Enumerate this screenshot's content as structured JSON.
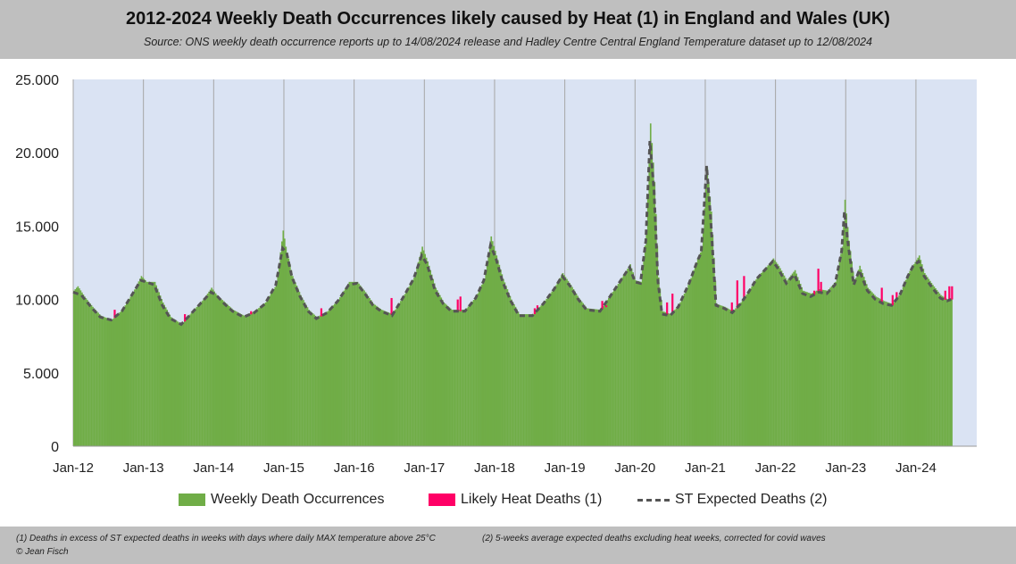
{
  "header": {
    "title": "2012-2024 Weekly Death Occurrences likely caused by Heat (1) in England and Wales (UK)",
    "subtitle": "Source: ONS weekly death occurrence reports up to 14/08/2024 release and Hadley Centre Central England Temperature dataset up to 12/08/2024"
  },
  "legend": {
    "weekly": "Weekly Death Occurrences",
    "heat": "Likely Heat Deaths (1)",
    "expected": "ST Expected Deaths (2)"
  },
  "footer": {
    "note1": "(1) Deaths in excess of ST expected deaths in weeks with days where daily MAX temperature above 25°C",
    "note2": "(2) 5-weeks average expected deaths excluding heat weeks, corrected for covid waves",
    "credit": "© Jean Fisch"
  },
  "colors": {
    "plot_bg": "#dae3f3",
    "weekly": "#70ad47",
    "heat": "#ff0066",
    "expected": "#555555",
    "year_line": "#a6a6a6"
  },
  "chart_data": {
    "type": "bar",
    "title": "2012-2024 Weekly Death Occurrences likely caused by Heat (1) in England and Wales (UK)",
    "xlabel": "",
    "ylabel": "",
    "ylim": [
      0,
      25000
    ],
    "xlim_weeks": [
      0,
      669
    ],
    "yticks": [
      0,
      5000,
      10000,
      15000,
      20000,
      25000
    ],
    "ytick_labels": [
      "0",
      "5.000",
      "10.000",
      "15.000",
      "20.000",
      "25.000"
    ],
    "xticks": [
      {
        "week": 0,
        "label": "Jan-12"
      },
      {
        "week": 52,
        "label": "Jan-13"
      },
      {
        "week": 104,
        "label": "Jan-14"
      },
      {
        "week": 156,
        "label": "Jan-15"
      },
      {
        "week": 208,
        "label": "Jan-16"
      },
      {
        "week": 260,
        "label": "Jan-17"
      },
      {
        "week": 312,
        "label": "Jan-18"
      },
      {
        "week": 364,
        "label": "Jan-19"
      },
      {
        "week": 416,
        "label": "Jan-20"
      },
      {
        "week": 468,
        "label": "Jan-21"
      },
      {
        "week": 520,
        "label": "Jan-22"
      },
      {
        "week": 572,
        "label": "Jan-23"
      },
      {
        "week": 624,
        "label": "Jan-24"
      }
    ],
    "series_weekly_keypoints": [
      [
        0,
        10600
      ],
      [
        3,
        10900
      ],
      [
        8,
        10200
      ],
      [
        14,
        9500
      ],
      [
        20,
        8900
      ],
      [
        28,
        8600
      ],
      [
        36,
        9300
      ],
      [
        44,
        10500
      ],
      [
        50,
        11600
      ],
      [
        54,
        11200
      ],
      [
        60,
        11200
      ],
      [
        66,
        9800
      ],
      [
        72,
        8800
      ],
      [
        80,
        8300
      ],
      [
        88,
        9200
      ],
      [
        96,
        10000
      ],
      [
        102,
        10800
      ],
      [
        106,
        10300
      ],
      [
        112,
        9800
      ],
      [
        118,
        9300
      ],
      [
        126,
        8900
      ],
      [
        134,
        9200
      ],
      [
        142,
        9800
      ],
      [
        150,
        11000
      ],
      [
        155,
        14700
      ],
      [
        157,
        13600
      ],
      [
        162,
        11600
      ],
      [
        168,
        10300
      ],
      [
        174,
        9300
      ],
      [
        180,
        8800
      ],
      [
        188,
        9200
      ],
      [
        196,
        10000
      ],
      [
        204,
        11200
      ],
      [
        210,
        11200
      ],
      [
        216,
        10500
      ],
      [
        222,
        9700
      ],
      [
        228,
        9300
      ],
      [
        236,
        9000
      ],
      [
        244,
        10200
      ],
      [
        252,
        11500
      ],
      [
        258,
        13600
      ],
      [
        262,
        12600
      ],
      [
        268,
        10800
      ],
      [
        274,
        9800
      ],
      [
        280,
        9300
      ],
      [
        290,
        9300
      ],
      [
        298,
        10200
      ],
      [
        304,
        11400
      ],
      [
        309,
        14300
      ],
      [
        313,
        13000
      ],
      [
        318,
        11400
      ],
      [
        324,
        10000
      ],
      [
        330,
        9000
      ],
      [
        340,
        9000
      ],
      [
        348,
        9800
      ],
      [
        356,
        10800
      ],
      [
        362,
        11800
      ],
      [
        368,
        11000
      ],
      [
        374,
        10100
      ],
      [
        380,
        9400
      ],
      [
        390,
        9300
      ],
      [
        396,
        10100
      ],
      [
        404,
        11200
      ],
      [
        412,
        12400
      ],
      [
        416,
        11300
      ],
      [
        420,
        11200
      ],
      [
        424,
        14500
      ],
      [
        427,
        22000
      ],
      [
        430,
        18000
      ],
      [
        433,
        11500
      ],
      [
        436,
        9200
      ],
      [
        442,
        9000
      ],
      [
        448,
        9600
      ],
      [
        456,
        11200
      ],
      [
        462,
        12800
      ],
      [
        465,
        13400
      ],
      [
        469,
        19000
      ],
      [
        472,
        16000
      ],
      [
        476,
        9700
      ],
      [
        482,
        9500
      ],
      [
        488,
        9200
      ],
      [
        494,
        9800
      ],
      [
        500,
        10600
      ],
      [
        506,
        11500
      ],
      [
        512,
        12100
      ],
      [
        518,
        12800
      ],
      [
        522,
        12300
      ],
      [
        528,
        11300
      ],
      [
        534,
        12000
      ],
      [
        540,
        10600
      ],
      [
        546,
        10400
      ],
      [
        552,
        10700
      ],
      [
        558,
        10600
      ],
      [
        564,
        11200
      ],
      [
        569,
        13600
      ],
      [
        571,
        16800
      ],
      [
        574,
        14000
      ],
      [
        578,
        11200
      ],
      [
        582,
        12300
      ],
      [
        588,
        10800
      ],
      [
        594,
        10200
      ],
      [
        600,
        9900
      ],
      [
        606,
        9700
      ],
      [
        612,
        10400
      ],
      [
        618,
        11800
      ],
      [
        622,
        12400
      ],
      [
        626,
        13000
      ],
      [
        630,
        11800
      ],
      [
        636,
        11000
      ],
      [
        642,
        10300
      ],
      [
        647,
        10000
      ],
      [
        650,
        10100
      ]
    ],
    "series_expected_keypoints": [
      [
        0,
        10500
      ],
      [
        6,
        10300
      ],
      [
        14,
        9400
      ],
      [
        20,
        8800
      ],
      [
        28,
        8600
      ],
      [
        36,
        9200
      ],
      [
        44,
        10400
      ],
      [
        50,
        11300
      ],
      [
        54,
        11200
      ],
      [
        60,
        11000
      ],
      [
        66,
        9600
      ],
      [
        72,
        8700
      ],
      [
        80,
        8300
      ],
      [
        88,
        9100
      ],
      [
        96,
        9900
      ],
      [
        102,
        10500
      ],
      [
        106,
        10300
      ],
      [
        112,
        9700
      ],
      [
        118,
        9200
      ],
      [
        126,
        8800
      ],
      [
        134,
        9100
      ],
      [
        142,
        9700
      ],
      [
        150,
        11000
      ],
      [
        155,
        13500
      ],
      [
        158,
        13200
      ],
      [
        162,
        11500
      ],
      [
        168,
        10200
      ],
      [
        174,
        9200
      ],
      [
        180,
        8700
      ],
      [
        188,
        9100
      ],
      [
        196,
        9900
      ],
      [
        204,
        11000
      ],
      [
        210,
        11100
      ],
      [
        216,
        10400
      ],
      [
        222,
        9600
      ],
      [
        228,
        9200
      ],
      [
        236,
        8900
      ],
      [
        244,
        10100
      ],
      [
        252,
        11400
      ],
      [
        258,
        13000
      ],
      [
        262,
        12400
      ],
      [
        268,
        10600
      ],
      [
        274,
        9700
      ],
      [
        280,
        9200
      ],
      [
        290,
        9200
      ],
      [
        298,
        10100
      ],
      [
        304,
        11300
      ],
      [
        309,
        13700
      ],
      [
        313,
        12800
      ],
      [
        318,
        11200
      ],
      [
        324,
        9900
      ],
      [
        330,
        8900
      ],
      [
        340,
        8900
      ],
      [
        348,
        9700
      ],
      [
        356,
        10700
      ],
      [
        362,
        11600
      ],
      [
        368,
        10900
      ],
      [
        374,
        10000
      ],
      [
        380,
        9300
      ],
      [
        390,
        9200
      ],
      [
        396,
        10000
      ],
      [
        404,
        11100
      ],
      [
        412,
        12200
      ],
      [
        416,
        11200
      ],
      [
        420,
        11100
      ],
      [
        424,
        14000
      ],
      [
        427,
        20800
      ],
      [
        430,
        17500
      ],
      [
        433,
        11200
      ],
      [
        436,
        9000
      ],
      [
        442,
        8900
      ],
      [
        448,
        9500
      ],
      [
        456,
        11100
      ],
      [
        462,
        12600
      ],
      [
        465,
        13200
      ],
      [
        469,
        19100
      ],
      [
        472,
        15500
      ],
      [
        476,
        9600
      ],
      [
        482,
        9400
      ],
      [
        488,
        9100
      ],
      [
        494,
        9700
      ],
      [
        500,
        10500
      ],
      [
        506,
        11400
      ],
      [
        512,
        12000
      ],
      [
        518,
        12600
      ],
      [
        522,
        12100
      ],
      [
        528,
        11100
      ],
      [
        534,
        11700
      ],
      [
        540,
        10400
      ],
      [
        546,
        10200
      ],
      [
        552,
        10500
      ],
      [
        558,
        10400
      ],
      [
        564,
        11000
      ],
      [
        569,
        13300
      ],
      [
        571,
        16000
      ],
      [
        574,
        13600
      ],
      [
        578,
        11000
      ],
      [
        582,
        12000
      ],
      [
        588,
        10600
      ],
      [
        594,
        10000
      ],
      [
        600,
        9700
      ],
      [
        606,
        9600
      ],
      [
        612,
        10300
      ],
      [
        618,
        11600
      ],
      [
        622,
        12300
      ],
      [
        626,
        12600
      ],
      [
        630,
        11600
      ],
      [
        636,
        10800
      ],
      [
        642,
        10100
      ],
      [
        647,
        9900
      ],
      [
        650,
        10000
      ]
    ],
    "heat_deaths": [
      {
        "week": 30,
        "value": 9300
      },
      {
        "week": 82,
        "value": 9000
      },
      {
        "week": 131,
        "value": 9200
      },
      {
        "week": 183,
        "value": 9400
      },
      {
        "week": 235,
        "value": 10100
      },
      {
        "week": 284,
        "value": 10000
      },
      {
        "week": 286,
        "value": 10200
      },
      {
        "week": 341,
        "value": 9400
      },
      {
        "week": 343,
        "value": 9600
      },
      {
        "week": 391,
        "value": 9900
      },
      {
        "week": 394,
        "value": 9600
      },
      {
        "week": 439,
        "value": 9800
      },
      {
        "week": 443,
        "value": 10400
      },
      {
        "week": 487,
        "value": 9800
      },
      {
        "week": 491,
        "value": 11300
      },
      {
        "week": 496,
        "value": 11600
      },
      {
        "week": 548,
        "value": 10600
      },
      {
        "week": 551,
        "value": 12100
      },
      {
        "week": 553,
        "value": 11200
      },
      {
        "week": 598,
        "value": 10800
      },
      {
        "week": 606,
        "value": 10300
      },
      {
        "week": 609,
        "value": 10500
      },
      {
        "week": 645,
        "value": 10600
      },
      {
        "week": 648,
        "value": 10900
      },
      {
        "week": 650,
        "value": 10900
      }
    ]
  }
}
